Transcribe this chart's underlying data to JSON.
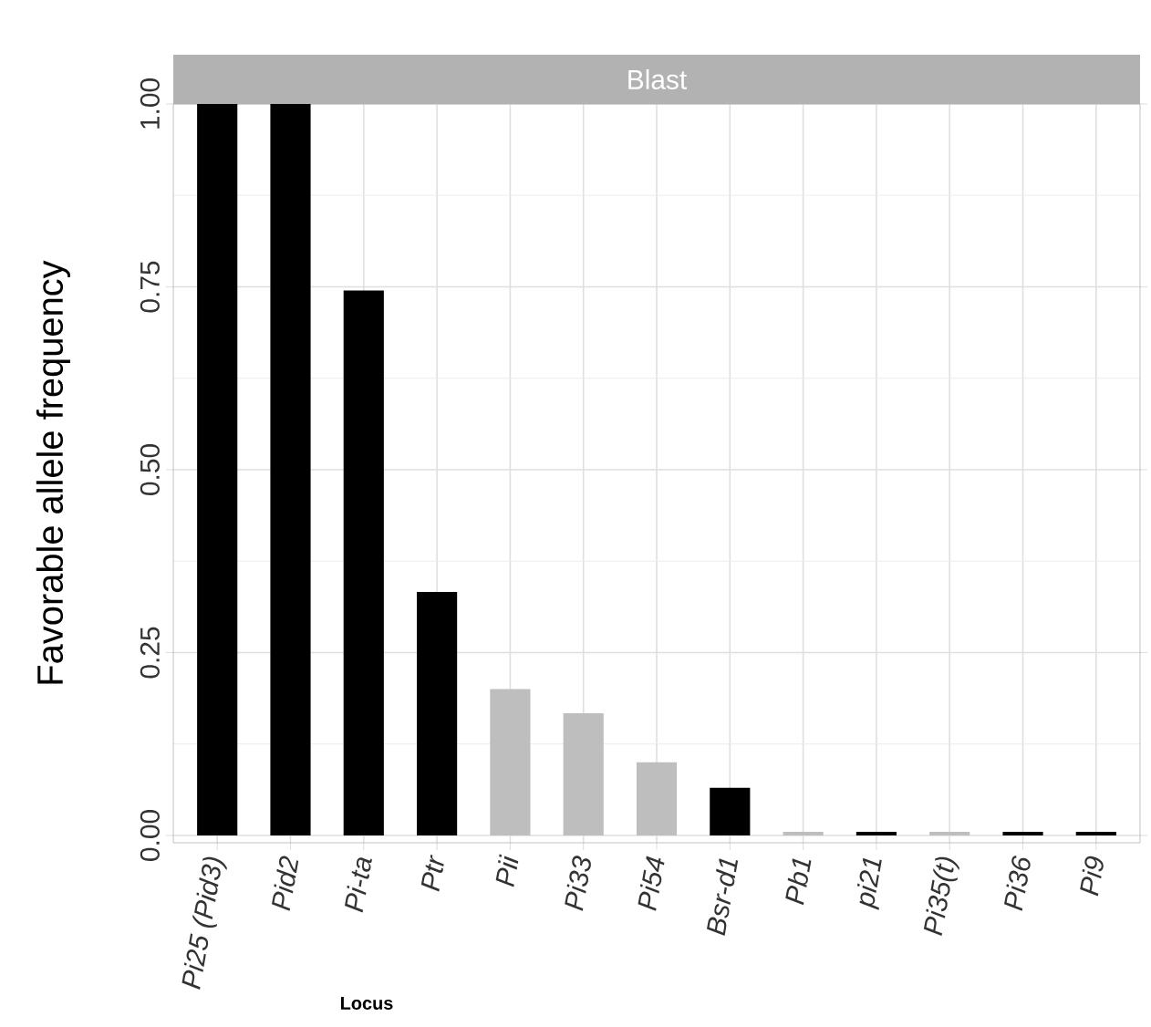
{
  "chart_data": {
    "type": "bar",
    "title": "Blast",
    "xlabel": "Locus",
    "ylabel": "Favorable allele frequency",
    "categories": [
      "Pi25 (Pid3)",
      "Pid2",
      "Pi-ta",
      "Ptr",
      "Pii",
      "Pi33",
      "Pi54",
      "Bsr-d1",
      "Pb1",
      "pi21",
      "Pi35(t)",
      "Pi36",
      "Pi9"
    ],
    "values": [
      1.0,
      1.0,
      0.745,
      0.333,
      0.2,
      0.167,
      0.1,
      0.065,
      0.005,
      0.005,
      0.005,
      0.005,
      0.005
    ],
    "colors": [
      "#000000",
      "#000000",
      "#000000",
      "#000000",
      "#bebebe",
      "#bebebe",
      "#bebebe",
      "#000000",
      "#bebebe",
      "#000000",
      "#bebebe",
      "#000000",
      "#000000"
    ],
    "ylim": [
      -0.01,
      1.0
    ],
    "yticks": [
      {
        "value": 0,
        "label": "0.00"
      },
      {
        "value": 0.25,
        "label": "0.25"
      },
      {
        "value": 0.5,
        "label": "0.50"
      },
      {
        "value": 0.75,
        "label": "0.75"
      },
      {
        "value": 1.0,
        "label": "1.00"
      }
    ],
    "grid": true
  }
}
